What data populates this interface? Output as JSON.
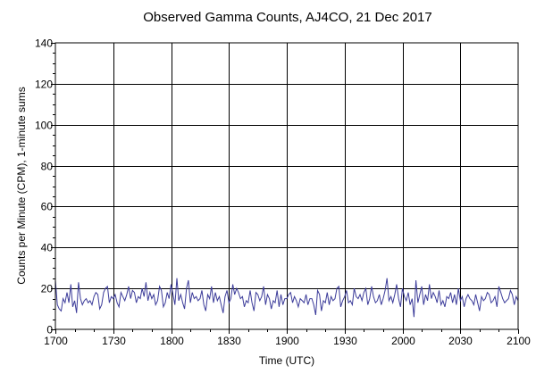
{
  "chart_data": {
    "type": "line",
    "title": "Observed Gamma Counts, AJ4CO, 21 Dec 2017",
    "xlabel": "Time (UTC)",
    "ylabel": "Counts per Minute (CPM), 1-minute sums",
    "x_ticks": [
      "1700",
      "1730",
      "1800",
      "1830",
      "1900",
      "1930",
      "2000",
      "2030",
      "2100"
    ],
    "y_ticks": [
      0,
      20,
      40,
      60,
      80,
      100,
      120,
      140
    ],
    "xlim_minutes": [
      0,
      240
    ],
    "ylim": [
      0,
      140
    ],
    "grid": true,
    "series_color": "#3c3c9a",
    "series": [
      {
        "values": [
          24,
          12,
          10,
          9,
          15,
          13,
          18,
          13,
          22,
          11,
          14,
          8,
          23,
          15,
          12,
          14,
          15,
          13,
          14,
          12,
          16,
          18,
          17,
          10,
          12,
          18,
          20,
          21,
          13,
          16,
          15,
          17,
          13,
          11,
          18,
          16,
          14,
          17,
          21,
          15,
          19,
          18,
          13,
          16,
          15,
          20,
          16,
          23,
          14,
          18,
          15,
          17,
          12,
          14,
          21,
          19,
          11,
          13,
          18,
          15,
          22,
          17,
          12,
          25,
          14,
          17,
          13,
          10,
          20,
          24,
          13,
          18,
          15,
          16,
          14,
          15,
          19,
          12,
          9,
          17,
          15,
          21,
          13,
          18,
          14,
          16,
          12,
          8,
          16,
          19,
          13,
          15,
          22,
          17,
          20,
          18,
          15,
          16,
          11,
          14,
          13,
          19,
          13,
          9,
          18,
          17,
          14,
          16,
          21,
          12,
          17,
          15,
          10,
          14,
          13,
          19,
          11,
          17,
          12,
          15,
          15,
          17,
          18,
          13,
          16,
          14,
          11,
          15,
          14,
          13,
          17,
          12,
          15,
          15,
          12,
          7,
          19,
          17,
          9,
          14,
          13,
          18,
          12,
          16,
          14,
          15,
          20,
          21,
          11,
          14,
          16,
          19,
          13,
          14,
          12,
          20,
          16,
          15,
          17,
          14,
          18,
          20,
          12,
          15,
          21,
          16,
          13,
          14,
          17,
          12,
          15,
          19,
          25,
          14,
          16,
          13,
          17,
          22,
          15,
          11,
          20,
          16,
          14,
          18,
          12,
          15,
          6,
          24,
          13,
          17,
          21,
          12,
          17,
          14,
          22,
          15,
          18,
          16,
          13,
          19,
          12,
          14,
          11,
          16,
          15,
          18,
          13,
          17,
          12,
          20,
          14,
          16,
          11,
          15,
          17,
          15,
          14,
          12,
          17,
          13,
          9,
          16,
          14,
          15,
          18,
          17,
          13,
          14,
          16,
          11,
          21,
          18,
          15,
          13,
          14,
          15,
          19,
          17,
          12,
          16,
          14
        ]
      }
    ]
  }
}
